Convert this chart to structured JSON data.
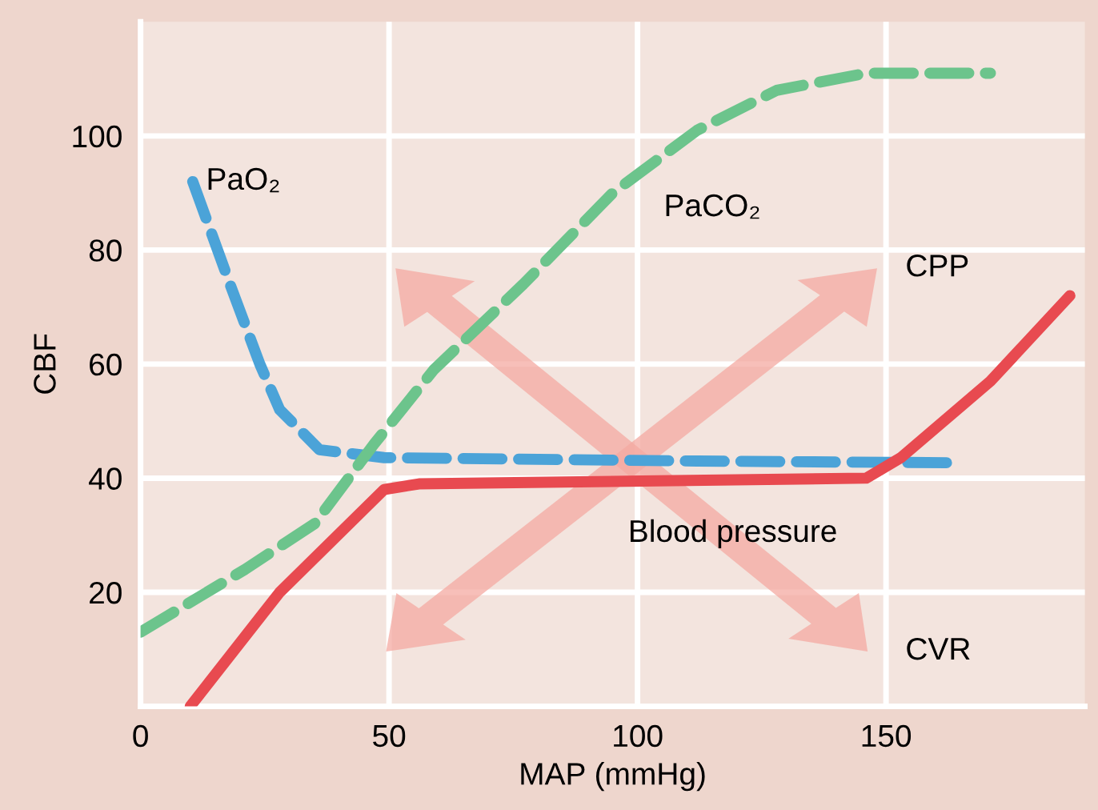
{
  "chart_data": {
    "type": "line",
    "xlabel": "MAP (mmHg)",
    "ylabel": "CBF",
    "xlim": [
      0,
      190
    ],
    "ylim": [
      0,
      120
    ],
    "xticks": [
      0,
      50,
      100,
      150
    ],
    "yticks": [
      20,
      40,
      60,
      80,
      100
    ],
    "grid": true,
    "series": [
      {
        "name": "PaO₂",
        "color": "#4ba3d8",
        "line_style": "dashed",
        "x": [
          10.5,
          18,
          24,
          28,
          36,
          49,
          112,
          163
        ],
        "values": [
          92,
          74,
          60,
          52,
          45,
          43.6,
          43,
          42.7
        ]
      },
      {
        "name": "PaCO₂",
        "color": "#6cc48c",
        "line_style": "dashed",
        "x": [
          0,
          21,
          35,
          47,
          59,
          77,
          95,
          112,
          128,
          146,
          171
        ],
        "values": [
          13,
          24,
          32,
          46,
          59,
          74,
          90,
          101,
          108,
          111,
          111
        ]
      },
      {
        "name": "Blood pressure",
        "color": "#e84a50",
        "line_style": "solid",
        "x": [
          10,
          28,
          49,
          56,
          146,
          153,
          171,
          187
        ],
        "values": [
          0,
          20,
          38,
          39,
          40,
          43.6,
          57,
          72
        ]
      }
    ],
    "annotations": [
      "CPP",
      "CVR"
    ]
  }
}
